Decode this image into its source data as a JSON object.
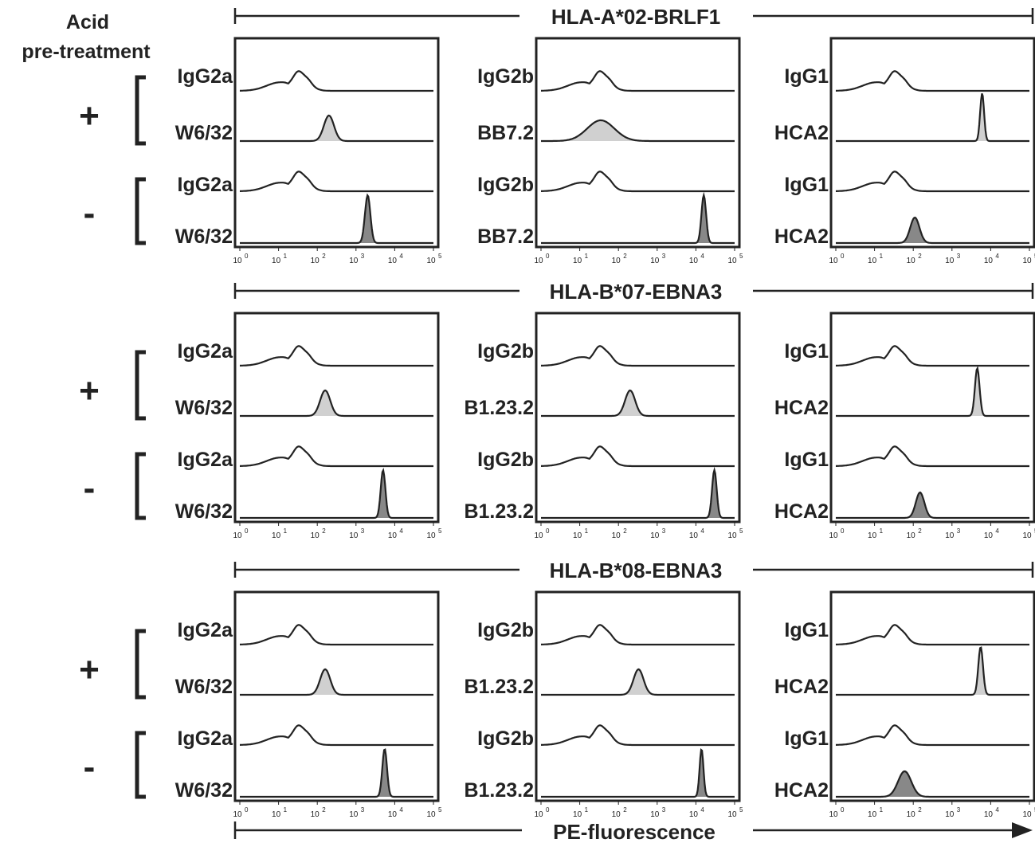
{
  "header": {
    "line1": "Acid",
    "line2": "pre-treatment"
  },
  "x_axis_label": "PE-fluorescence",
  "colors": {
    "plus_fill": "#d0d0d0",
    "minus_fill": "#888888",
    "line": "#222222"
  },
  "chart_data": {
    "type": "histogram",
    "xscale": "log",
    "xlim": [
      1,
      100000
    ],
    "xticks": [
      {
        "base": "10",
        "exp": "0"
      },
      {
        "base": "10",
        "exp": "1"
      },
      {
        "base": "10",
        "exp": "2"
      },
      {
        "base": "10",
        "exp": "3"
      },
      {
        "base": "10",
        "exp": "4"
      },
      {
        "base": "10",
        "exp": "5"
      }
    ],
    "conditions": [
      "+",
      "-"
    ],
    "groups": [
      {
        "title": "HLA-A*02-BRLF1",
        "panels": [
          {
            "isotype": "IgG2a",
            "antibody": "W6/32",
            "plus_peak": 200,
            "minus_peak": 2000,
            "minus_width": 0.07,
            "plus_width": 0.13
          },
          {
            "isotype": "IgG2b",
            "antibody": "BB7.2",
            "plus_peak": 35,
            "minus_peak": 16000,
            "minus_width": 0.06,
            "plus_width": 0.35
          },
          {
            "isotype": "IgG1",
            "antibody": "HCA2",
            "plus_peak": 6000,
            "minus_peak": 110,
            "minus_width": 0.12,
            "plus_width": 0.05
          }
        ]
      },
      {
        "title": "HLA-B*07-EBNA3",
        "panels": [
          {
            "isotype": "IgG2a",
            "antibody": "W6/32",
            "plus_peak": 160,
            "minus_peak": 5000,
            "minus_width": 0.06,
            "plus_width": 0.13
          },
          {
            "isotype": "IgG2b",
            "antibody": "B1.23.2",
            "plus_peak": 200,
            "minus_peak": 30000,
            "minus_width": 0.06,
            "plus_width": 0.13
          },
          {
            "isotype": "IgG1",
            "antibody": "HCA2",
            "plus_peak": 4500,
            "minus_peak": 150,
            "minus_width": 0.11,
            "plus_width": 0.06
          }
        ]
      },
      {
        "title": "HLA-B*08-EBNA3",
        "panels": [
          {
            "isotype": "IgG2a",
            "antibody": "W6/32",
            "plus_peak": 160,
            "minus_peak": 5500,
            "minus_width": 0.06,
            "plus_width": 0.13
          },
          {
            "isotype": "IgG2b",
            "antibody": "B1.23.2",
            "plus_peak": 330,
            "minus_peak": 14000,
            "minus_width": 0.05,
            "plus_width": 0.13
          },
          {
            "isotype": "IgG1",
            "antibody": "HCA2",
            "plus_peak": 5500,
            "minus_peak": 60,
            "minus_width": 0.17,
            "plus_width": 0.06
          }
        ]
      }
    ]
  }
}
